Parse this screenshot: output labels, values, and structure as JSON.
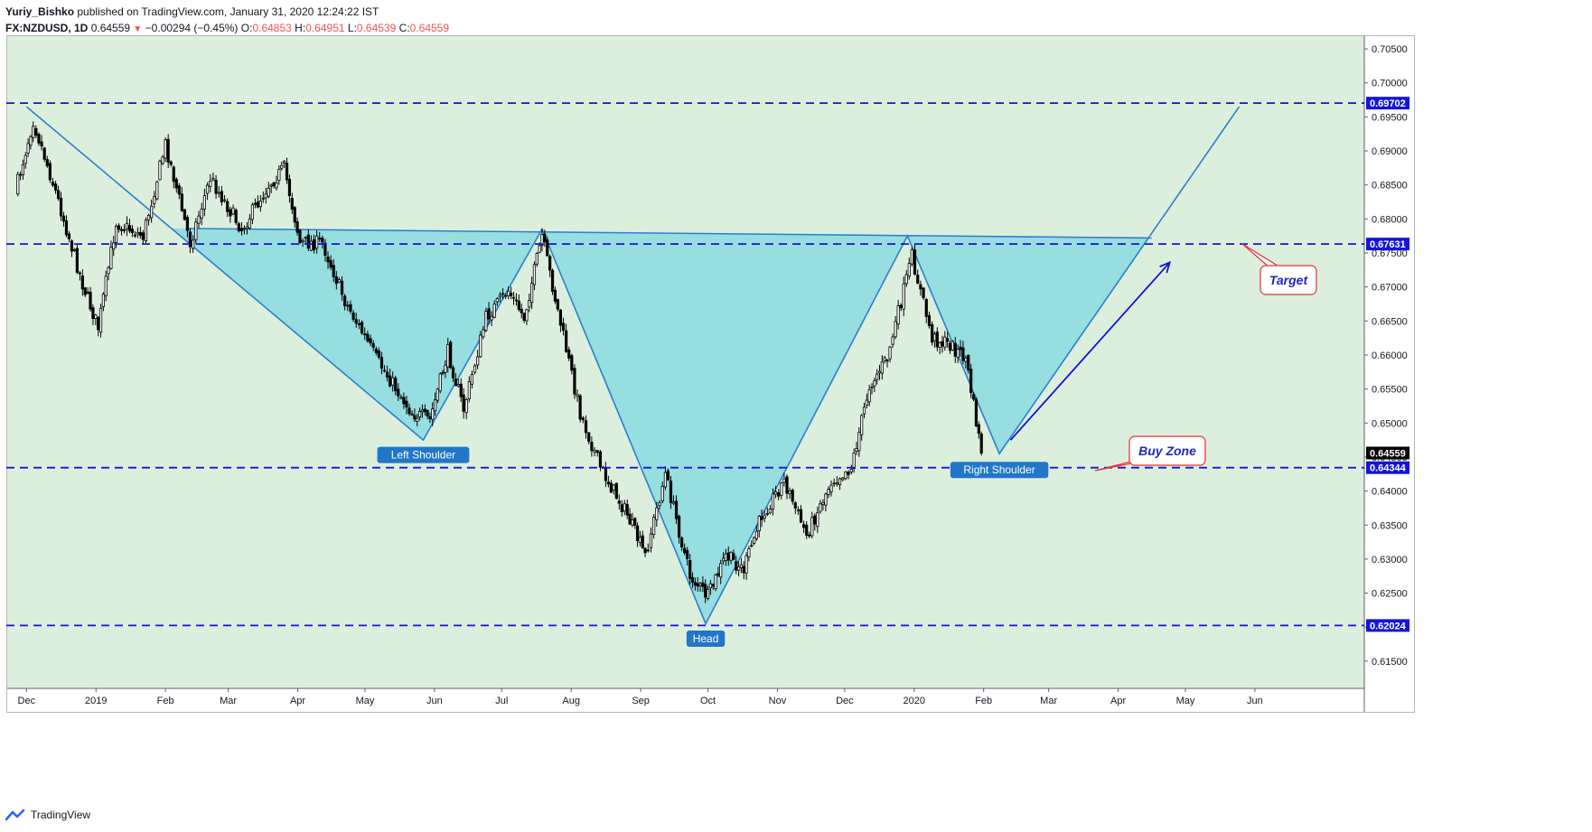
{
  "header": {
    "publisher": "Yuriy_Bishko",
    "published_text": "published on TradingView.com, January 31, 2020 12:24:22 IST",
    "symbol": "FX:NZDUSD, 1D",
    "last": "0.64559",
    "change_arrow": "▼",
    "change": "−0.00294 (−0.45%)",
    "o_label": "O:",
    "o_value": "0.64853",
    "h_label": "H:",
    "h_value": "0.64951",
    "l_label": "L:",
    "l_value": "0.64539",
    "c_label": "C:",
    "c_value": "0.64559"
  },
  "brand": {
    "name": "TradingView",
    "icon": "tradingview-logo-icon"
  },
  "colors": {
    "plot_background": "#dcefdc",
    "candle": "#000000",
    "pattern_fill": "#7fd8e0",
    "pattern_line": "#2a7fcf",
    "level_line": "#1414d8",
    "label_bg": "#2176c8",
    "callout_border": "#e0313a",
    "callout_text": "#1e28b4",
    "price_tag_current": "#000000"
  },
  "chart_data": {
    "type": "candlestick",
    "symbol": "FX:NZDUSD",
    "timeframe": "1D",
    "ylim": [
      0.611,
      0.707
    ],
    "y_ticks": [
      "0.70500",
      "0.70000",
      "0.69500",
      "0.69000",
      "0.68500",
      "0.68000",
      "0.67500",
      "0.67000",
      "0.66500",
      "0.66000",
      "0.65500",
      "0.65000",
      "0.64500",
      "0.64000",
      "0.63500",
      "0.63000",
      "0.62500",
      "0.62000",
      "0.61500"
    ],
    "x_ticks": [
      "Dec",
      "2019",
      "Feb",
      "Mar",
      "Apr",
      "May",
      "Jun",
      "Jul",
      "Aug",
      "Sep",
      "Oct",
      "Nov",
      "Dec",
      "2020",
      "Feb",
      "Mar",
      "Apr",
      "May",
      "Jun"
    ],
    "close_path": [
      {
        "date": "2018-11-26",
        "close": 0.684
      },
      {
        "date": "2018-12-04",
        "close": 0.6945
      },
      {
        "date": "2018-12-14",
        "close": 0.684
      },
      {
        "date": "2018-12-26",
        "close": 0.6705
      },
      {
        "date": "2019-01-02",
        "close": 0.664
      },
      {
        "date": "2019-01-10",
        "close": 0.6795
      },
      {
        "date": "2019-01-22",
        "close": 0.6775
      },
      {
        "date": "2019-02-01",
        "close": 0.691
      },
      {
        "date": "2019-02-12",
        "close": 0.6765
      },
      {
        "date": "2019-02-21",
        "close": 0.686
      },
      {
        "date": "2019-03-07",
        "close": 0.6785
      },
      {
        "date": "2019-03-19",
        "close": 0.685
      },
      {
        "date": "2019-03-26",
        "close": 0.6875
      },
      {
        "date": "2019-04-02",
        "close": 0.6765
      },
      {
        "date": "2019-04-12",
        "close": 0.6765
      },
      {
        "date": "2019-04-22",
        "close": 0.668
      },
      {
        "date": "2019-05-06",
        "close": 0.6595
      },
      {
        "date": "2019-05-22",
        "close": 0.6515
      },
      {
        "date": "2019-05-30",
        "close": 0.6505
      },
      {
        "date": "2019-06-07",
        "close": 0.6605
      },
      {
        "date": "2019-06-14",
        "close": 0.652
      },
      {
        "date": "2019-06-24",
        "close": 0.6655
      },
      {
        "date": "2019-07-04",
        "close": 0.6695
      },
      {
        "date": "2019-07-11",
        "close": 0.6655
      },
      {
        "date": "2019-07-19",
        "close": 0.6775
      },
      {
        "date": "2019-07-26",
        "close": 0.6665
      },
      {
        "date": "2019-08-05",
        "close": 0.6515
      },
      {
        "date": "2019-08-14",
        "close": 0.6435
      },
      {
        "date": "2019-08-26",
        "close": 0.6365
      },
      {
        "date": "2019-09-03",
        "close": 0.6305
      },
      {
        "date": "2019-09-12",
        "close": 0.6425
      },
      {
        "date": "2019-09-23",
        "close": 0.6275
      },
      {
        "date": "2019-10-01",
        "close": 0.6245
      },
      {
        "date": "2019-10-09",
        "close": 0.6305
      },
      {
        "date": "2019-10-17",
        "close": 0.6285
      },
      {
        "date": "2019-10-25",
        "close": 0.6365
      },
      {
        "date": "2019-11-04",
        "close": 0.6415
      },
      {
        "date": "2019-11-14",
        "close": 0.6335
      },
      {
        "date": "2019-11-25",
        "close": 0.6415
      },
      {
        "date": "2019-12-04",
        "close": 0.6435
      },
      {
        "date": "2019-12-12",
        "close": 0.6555
      },
      {
        "date": "2019-12-20",
        "close": 0.6595
      },
      {
        "date": "2019-12-31",
        "close": 0.6745
      },
      {
        "date": "2020-01-09",
        "close": 0.6625
      },
      {
        "date": "2020-01-17",
        "close": 0.6615
      },
      {
        "date": "2020-01-24",
        "close": 0.6595
      },
      {
        "date": "2020-01-31",
        "close": 0.64559
      }
    ],
    "levels": [
      {
        "price": 0.69702,
        "label": "0.69702"
      },
      {
        "price": 0.67631,
        "label": "0.67631"
      },
      {
        "price": 0.64344,
        "label": "0.64344"
      },
      {
        "price": 0.62024,
        "label": "0.62024"
      }
    ],
    "current_price": {
      "price": 0.64559,
      "label": "0.64559"
    },
    "pattern": {
      "name": "inverse head and shoulders",
      "points": [
        {
          "date": "2018-12-01",
          "price": 0.6965
        },
        {
          "date": "2019-05-27",
          "price": 0.6475
        },
        {
          "date": "2019-07-19",
          "price": 0.6785
        },
        {
          "date": "2019-09-30",
          "price": 0.6205
        },
        {
          "date": "2019-12-29",
          "price": 0.6775
        },
        {
          "date": "2020-02-08",
          "price": 0.6455
        },
        {
          "date": "2020-05-25",
          "price": 0.6965
        }
      ],
      "neckline_start": {
        "date": "2019-02-10",
        "price": 0.6786
      },
      "neckline_end": {
        "date": "2020-04-16",
        "price": 0.6772
      }
    },
    "point_labels": [
      {
        "text": "Left Shoulder",
        "date": "2019-05-27",
        "price": 0.6465
      },
      {
        "text": "Head",
        "date": "2019-09-30",
        "price": 0.6195
      },
      {
        "text": "Right Shoulder",
        "date": "2020-02-08",
        "price": 0.6443
      }
    ],
    "callouts": [
      {
        "text": "Target",
        "anchor_date": "2020-04-20",
        "anchor_price": 0.6763
      },
      {
        "text": "Buy Zone",
        "anchor_date": "2020-02-15",
        "anchor_price": 0.6435
      }
    ],
    "projection_arrow": {
      "from": {
        "date": "2020-02-13",
        "price": 0.6475
      },
      "to": {
        "date": "2020-04-24",
        "price": 0.6736
      }
    }
  }
}
